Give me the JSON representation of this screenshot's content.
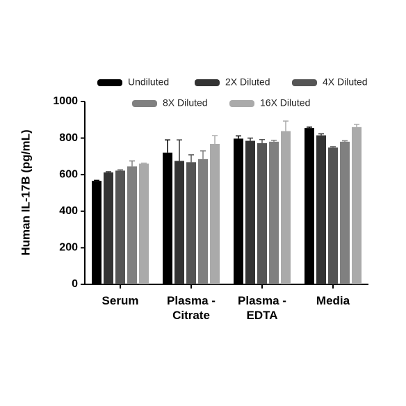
{
  "chart_data": {
    "type": "bar",
    "y_label": "Human IL-17B (pg/mL)",
    "categories": [
      "Serum",
      "Plasma - Citrate",
      "Plasma - EDTA",
      "Media"
    ],
    "series": [
      {
        "name": "Undiluted",
        "color": "#000000",
        "values": [
          566,
          720,
          797,
          855
        ],
        "errors": [
          3,
          70,
          15,
          5
        ]
      },
      {
        "name": "2X Diluted",
        "color": "#333333",
        "values": [
          612,
          675,
          785,
          815
        ],
        "errors": [
          4,
          115,
          15,
          8
        ]
      },
      {
        "name": "4X Diluted",
        "color": "#555555",
        "values": [
          622,
          668,
          772,
          748
        ],
        "errors": [
          4,
          40,
          20,
          5
        ]
      },
      {
        "name": "8X Diluted",
        "color": "#808080",
        "values": [
          645,
          685,
          780,
          780
        ],
        "errors": [
          30,
          45,
          8,
          5
        ]
      },
      {
        "name": "16X Diluted",
        "color": "#aaaaaa",
        "values": [
          660,
          768,
          838,
          860
        ],
        "errors": [
          3,
          45,
          55,
          15
        ]
      }
    ],
    "ylim": [
      0,
      1000
    ],
    "yticks": [
      0,
      200,
      400,
      600,
      800,
      1000
    ]
  }
}
